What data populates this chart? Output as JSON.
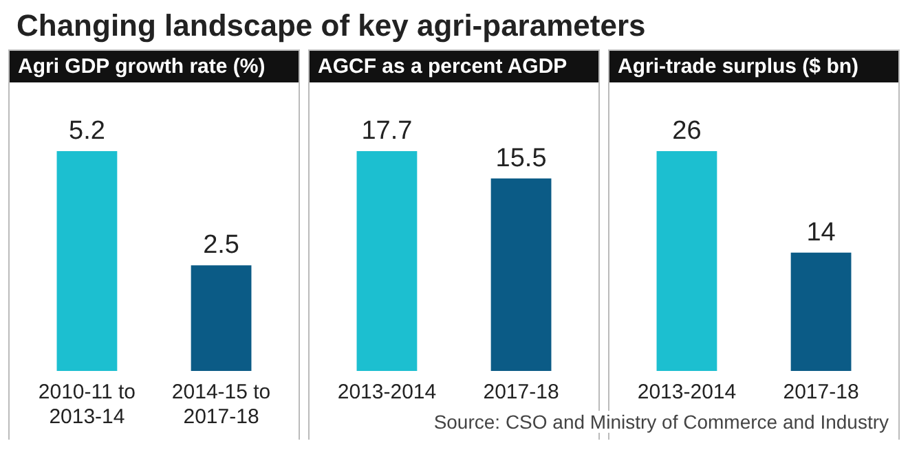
{
  "chart_data": [
    {
      "type": "other",
      "title": "Changing landscape of key agri-parameters",
      "annotations": [
        "Source: CSO and Ministry of Commerce and Industry"
      ]
    },
    {
      "type": "bar",
      "title": "Agri GDP growth rate (%)",
      "categories": [
        "2010-11 to 2013-14",
        "2014-15 to 2017-18"
      ],
      "values": [
        5.2,
        2.5
      ],
      "colors": [
        "#1cbfd0",
        "#0b5b86"
      ],
      "data_labels": true
    },
    {
      "type": "bar",
      "title": "AGCF as a percent AGDP",
      "categories": [
        "2013-2014",
        "2017-18"
      ],
      "values": [
        17.7,
        15.5
      ],
      "colors": [
        "#1cbfd0",
        "#0b5b86"
      ],
      "data_labels": true
    },
    {
      "type": "bar",
      "title": "Agri-trade surplus ($ bn)",
      "categories": [
        "2013-2014",
        "2017-18"
      ],
      "values": [
        26,
        14
      ],
      "colors": [
        "#1cbfd0",
        "#0b5b86"
      ],
      "data_labels": true
    }
  ]
}
